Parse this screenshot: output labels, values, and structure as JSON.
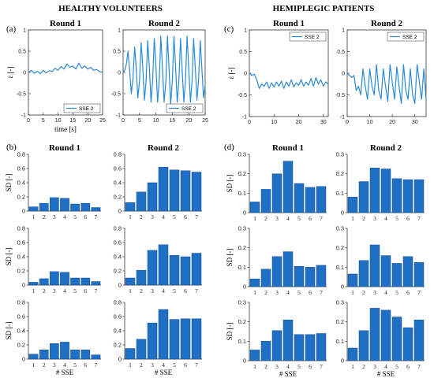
{
  "headers": {
    "left": "HEALTHY VOLUNTEERS",
    "right": "HEMIPLEGIC PATIENTS"
  },
  "panel_labels": {
    "a": "(a)",
    "b": "(b)",
    "c": "(c)",
    "d": "(d)"
  },
  "colors": {
    "bar": "#1f6fc5",
    "line": "#2b8ad6",
    "line_dark": "#1261b0",
    "axis": "#333333"
  },
  "chart_data": [
    {
      "id": "a1",
      "type": "line",
      "title": "Round 1",
      "ylabel": "ε [-]",
      "xlabel": "time [s]",
      "xlim": [
        0,
        25
      ],
      "ylim": [
        -1,
        1
      ],
      "xticks": [
        0,
        5,
        10,
        15,
        20,
        25
      ],
      "yticks": [
        -1,
        -0.5,
        0,
        0.5,
        1
      ],
      "legend": "SSE 2",
      "legend_position": "bottom-right",
      "series": [
        {
          "name": "SSE 2",
          "x": [
            0,
            1,
            2,
            3,
            4,
            5,
            6,
            7,
            8,
            9,
            10,
            11,
            12,
            13,
            14,
            15,
            16,
            17,
            18,
            19,
            20,
            21,
            22,
            23,
            24,
            25
          ],
          "y": [
            0,
            0.05,
            -0.02,
            0.03,
            -0.03,
            0.05,
            -0.01,
            0.04,
            0.02,
            0.1,
            0.05,
            0.14,
            0.08,
            0.2,
            0.12,
            0.15,
            0.08,
            0.22,
            0.1,
            0.15,
            0.08,
            0.12,
            0.05,
            0.07,
            0.02,
            0.0
          ]
        }
      ]
    },
    {
      "id": "a2",
      "type": "line",
      "title": "Round 2",
      "ylabel": "",
      "xlabel": "",
      "xlim": [
        0,
        25
      ],
      "ylim": [
        -1,
        1
      ],
      "xticks": [
        0,
        5,
        10,
        15,
        20,
        25
      ],
      "yticks": [
        -1,
        -0.5,
        0,
        0.5,
        1
      ],
      "legend": "SSE 2",
      "legend_position": "bottom-right",
      "series": [
        {
          "name": "SSE 2",
          "x": [
            0,
            0.5,
            1,
            1.5,
            2,
            2.5,
            3,
            3.5,
            4,
            4.5,
            5,
            5.5,
            6,
            6.5,
            7,
            7.5,
            8,
            8.5,
            9,
            9.5,
            10,
            10.5,
            11,
            11.5,
            12,
            12.5,
            13,
            13.5,
            14,
            14.5,
            15,
            15.5,
            16,
            16.5,
            17,
            17.5,
            18,
            18.5,
            19,
            19.5,
            20,
            20.5,
            21,
            21.5,
            22,
            22.5,
            23,
            23.5,
            24,
            24.5,
            25
          ],
          "y": [
            0,
            0.05,
            0.2,
            0.5,
            0.05,
            -0.5,
            -0.15,
            0.6,
            0.1,
            -0.6,
            -0.2,
            0.7,
            0.1,
            -0.65,
            -0.2,
            0.75,
            0.1,
            -0.7,
            -0.2,
            0.8,
            0.15,
            -0.7,
            -0.2,
            0.85,
            0.1,
            -0.7,
            -0.25,
            0.85,
            0.1,
            -0.75,
            -0.2,
            0.85,
            0.1,
            -0.7,
            -0.2,
            0.8,
            0.05,
            -0.7,
            -0.2,
            0.85,
            0.1,
            -0.7,
            -0.2,
            0.8,
            0.1,
            -0.65,
            -0.15,
            0.75,
            0.1,
            -0.6,
            -0.3
          ]
        }
      ]
    },
    {
      "id": "c1",
      "type": "line",
      "title": "Round 1",
      "ylabel": "ε [-]",
      "xlabel": "",
      "xlim": [
        0,
        32
      ],
      "ylim": [
        -1,
        1
      ],
      "xticks": [
        0,
        10,
        20,
        30
      ],
      "yticks": [
        -1,
        -0.5,
        0,
        0.5,
        1
      ],
      "legend": "SSE 2",
      "legend_position": "top-right",
      "series": [
        {
          "name": "SSE 2",
          "x": [
            0,
            1,
            2,
            3,
            4,
            5,
            6,
            7,
            8,
            9,
            10,
            11,
            12,
            13,
            14,
            15,
            16,
            17,
            18,
            19,
            20,
            21,
            22,
            23,
            24,
            25,
            26,
            27,
            28,
            29,
            30,
            31,
            32
          ],
          "y": [
            0,
            -0.05,
            -0.02,
            -0.15,
            -0.35,
            -0.25,
            -0.3,
            -0.2,
            -0.35,
            -0.22,
            -0.32,
            -0.2,
            -0.3,
            -0.18,
            -0.35,
            -0.2,
            -0.3,
            -0.15,
            -0.32,
            -0.22,
            -0.28,
            -0.15,
            -0.3,
            -0.2,
            -0.28,
            -0.12,
            -0.3,
            -0.1,
            -0.25,
            -0.15,
            -0.3,
            -0.2,
            -0.25
          ]
        }
      ]
    },
    {
      "id": "c2",
      "type": "line",
      "title": "Round 2",
      "ylabel": "",
      "xlabel": "",
      "xlim": [
        0,
        35
      ],
      "ylim": [
        -1,
        1
      ],
      "xticks": [
        0,
        10,
        20,
        30
      ],
      "yticks": [
        -1,
        -0.5,
        0,
        0.5,
        1
      ],
      "legend": "SSE 2",
      "legend_position": "top-right",
      "series": [
        {
          "name": "SSE 2",
          "x": [
            0,
            1,
            2,
            3,
            4,
            5,
            6,
            7,
            8,
            9,
            10,
            11,
            12,
            13,
            14,
            15,
            16,
            17,
            18,
            19,
            20,
            21,
            22,
            23,
            24,
            25,
            26,
            27,
            28,
            29,
            30,
            31,
            32,
            33,
            34,
            35
          ],
          "y": [
            0,
            -0.05,
            -0.1,
            -0.05,
            -0.4,
            -0.3,
            -0.5,
            0.1,
            -0.3,
            -0.6,
            0.1,
            -0.3,
            -0.5,
            0.2,
            -0.4,
            -0.6,
            0.1,
            -0.3,
            -0.65,
            0.2,
            -0.2,
            -0.6,
            0.15,
            -0.3,
            -0.7,
            0.2,
            -0.4,
            -0.6,
            0.1,
            -0.5,
            -0.7,
            0.2,
            -0.2,
            -0.6,
            0.1,
            -0.6
          ]
        }
      ]
    },
    {
      "id": "b1",
      "type": "bar",
      "title": "Round 1",
      "ylabel": "SD [-]",
      "xlabel": "",
      "categories": [
        "1",
        "2",
        "3",
        "4",
        "5",
        "6",
        "7"
      ],
      "ylim": [
        0,
        0.8
      ],
      "yticks": [
        0,
        0.2,
        0.4,
        0.6,
        0.8
      ],
      "values": [
        0.06,
        0.11,
        0.19,
        0.18,
        0.1,
        0.11,
        0.05
      ]
    },
    {
      "id": "b2",
      "type": "bar",
      "title": "Round 2",
      "ylabel": "",
      "xlabel": "",
      "categories": [
        "1",
        "2",
        "3",
        "4",
        "5",
        "6",
        "7"
      ],
      "ylim": [
        0,
        0.8
      ],
      "yticks": [
        0,
        0.2,
        0.4,
        0.6,
        0.8
      ],
      "values": [
        0.12,
        0.27,
        0.4,
        0.62,
        0.58,
        0.57,
        0.55
      ]
    },
    {
      "id": "b3",
      "type": "bar",
      "title": "",
      "ylabel": "SD [-]",
      "xlabel": "",
      "categories": [
        "1",
        "2",
        "3",
        "4",
        "5",
        "6",
        "7"
      ],
      "ylim": [
        0,
        0.8
      ],
      "yticks": [
        0,
        0.2,
        0.4,
        0.6,
        0.8
      ],
      "values": [
        0.04,
        0.09,
        0.19,
        0.18,
        0.1,
        0.1,
        0.05
      ]
    },
    {
      "id": "b4",
      "type": "bar",
      "title": "",
      "ylabel": "",
      "xlabel": "",
      "categories": [
        "1",
        "2",
        "3",
        "4",
        "5",
        "6",
        "7"
      ],
      "ylim": [
        0,
        0.8
      ],
      "yticks": [
        0,
        0.2,
        0.4,
        0.6,
        0.8
      ],
      "values": [
        0.1,
        0.21,
        0.49,
        0.57,
        0.42,
        0.4,
        0.45
      ]
    },
    {
      "id": "b5",
      "type": "bar",
      "title": "",
      "ylabel": "SD [-]",
      "xlabel": "# SSE",
      "categories": [
        "1",
        "2",
        "3",
        "4",
        "5",
        "6",
        "7"
      ],
      "ylim": [
        0,
        0.8
      ],
      "yticks": [
        0,
        0.2,
        0.4,
        0.6,
        0.8
      ],
      "values": [
        0.07,
        0.13,
        0.22,
        0.24,
        0.13,
        0.13,
        0.06
      ]
    },
    {
      "id": "b6",
      "type": "bar",
      "title": "",
      "ylabel": "",
      "xlabel": "# SSE",
      "categories": [
        "1",
        "2",
        "3",
        "4",
        "5",
        "6",
        "7"
      ],
      "ylim": [
        0,
        0.8
      ],
      "yticks": [
        0,
        0.2,
        0.4,
        0.6,
        0.8
      ],
      "values": [
        0.15,
        0.28,
        0.51,
        0.7,
        0.56,
        0.57,
        0.57
      ]
    },
    {
      "id": "d1",
      "type": "bar",
      "title": "Round 1",
      "ylabel": "SD [-]",
      "xlabel": "",
      "categories": [
        "1",
        "2",
        "3",
        "4",
        "5",
        "6",
        "7"
      ],
      "ylim": [
        0,
        0.3
      ],
      "yticks": [
        0,
        0.1,
        0.2,
        0.3
      ],
      "values": [
        0.055,
        0.12,
        0.2,
        0.265,
        0.15,
        0.13,
        0.135
      ]
    },
    {
      "id": "d2",
      "type": "bar",
      "title": "Round 2",
      "ylabel": "",
      "xlabel": "",
      "categories": [
        "1",
        "2",
        "3",
        "4",
        "5",
        "6",
        "7"
      ],
      "ylim": [
        0,
        0.3
      ],
      "yticks": [
        0,
        0.1,
        0.2,
        0.3
      ],
      "values": [
        0.08,
        0.16,
        0.23,
        0.225,
        0.175,
        0.17,
        0.17
      ]
    },
    {
      "id": "d3",
      "type": "bar",
      "title": "",
      "ylabel": "SD [-]",
      "xlabel": "",
      "categories": [
        "1",
        "2",
        "3",
        "4",
        "5",
        "6",
        "7"
      ],
      "ylim": [
        0,
        0.3
      ],
      "yticks": [
        0,
        0.1,
        0.2,
        0.3
      ],
      "values": [
        0.04,
        0.09,
        0.155,
        0.18,
        0.105,
        0.1,
        0.11
      ]
    },
    {
      "id": "d4",
      "type": "bar",
      "title": "",
      "ylabel": "",
      "xlabel": "",
      "categories": [
        "1",
        "2",
        "3",
        "4",
        "5",
        "6",
        "7"
      ],
      "ylim": [
        0,
        0.3
      ],
      "yticks": [
        0,
        0.1,
        0.2,
        0.3
      ],
      "values": [
        0.065,
        0.135,
        0.215,
        0.16,
        0.12,
        0.155,
        0.125
      ]
    },
    {
      "id": "d5",
      "type": "bar",
      "title": "",
      "ylabel": "SD [-]",
      "xlabel": "# SSE",
      "categories": [
        "1",
        "2",
        "3",
        "4",
        "5",
        "6",
        "7"
      ],
      "ylim": [
        0,
        0.3
      ],
      "yticks": [
        0,
        0.1,
        0.2,
        0.3
      ],
      "values": [
        0.055,
        0.1,
        0.155,
        0.21,
        0.135,
        0.135,
        0.14
      ]
    },
    {
      "id": "d6",
      "type": "bar",
      "title": "",
      "ylabel": "",
      "xlabel": "# SSE",
      "categories": [
        "1",
        "2",
        "3",
        "4",
        "5",
        "6",
        "7"
      ],
      "ylim": [
        0,
        0.3
      ],
      "yticks": [
        0,
        0.1,
        0.2,
        0.3
      ],
      "values": [
        0.065,
        0.155,
        0.27,
        0.26,
        0.225,
        0.17,
        0.21
      ]
    }
  ]
}
